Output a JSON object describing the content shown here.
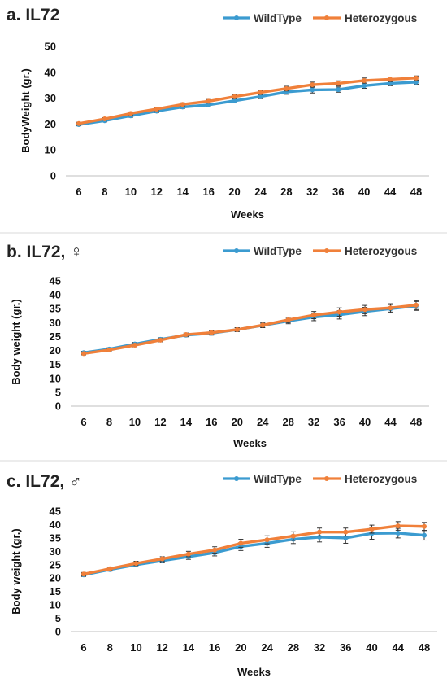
{
  "colors": {
    "wildtype": "#3b9bd0",
    "heterozygous": "#f0803a",
    "errorbar": "#333333",
    "axis": "#bfbfbf"
  },
  "chart_data": [
    {
      "type": "line",
      "title": "a. IL72",
      "xlabel": "Weeks",
      "ylabel": "BodyWeight (gr.)",
      "categories": [
        "6",
        "8",
        "10",
        "12",
        "14",
        "16",
        "20",
        "24",
        "28",
        "32",
        "36",
        "40",
        "44",
        "48"
      ],
      "ylim": [
        0,
        50
      ],
      "yticks": [
        "0",
        "10",
        "20",
        "30",
        "40",
        "50"
      ],
      "legend": "top-right",
      "grid": false,
      "series": [
        {
          "name": "WildType",
          "values": [
            19.8,
            21.3,
            23.2,
            25.0,
            26.6,
            27.4,
            29.0,
            30.6,
            32.4,
            33.2,
            33.3,
            34.8,
            35.7,
            36.2
          ],
          "errors": [
            0.5,
            0.5,
            0.6,
            0.6,
            0.6,
            0.7,
            0.8,
            0.8,
            0.9,
            1.2,
            1.0,
            1.0,
            0.9,
            0.8
          ]
        },
        {
          "name": "Heterozygous",
          "values": [
            20.2,
            22.0,
            24.1,
            25.8,
            27.6,
            28.8,
            30.6,
            32.2,
            33.7,
            35.2,
            35.7,
            36.8,
            37.3,
            37.8
          ],
          "errors": [
            0.5,
            0.5,
            0.6,
            0.6,
            0.6,
            0.7,
            0.8,
            0.8,
            0.9,
            1.0,
            1.0,
            1.0,
            0.9,
            0.8
          ]
        }
      ]
    },
    {
      "type": "line",
      "title": "b. IL72, ♀",
      "xlabel": "Weeks",
      "ylabel": "Body weight (gr.)",
      "categories": [
        "6",
        "8",
        "10",
        "12",
        "14",
        "16",
        "20",
        "24",
        "28",
        "32",
        "36",
        "40",
        "44",
        "48"
      ],
      "ylim": [
        0,
        45
      ],
      "yticks": [
        "0",
        "5",
        "10",
        "15",
        "20",
        "25",
        "30",
        "35",
        "40",
        "45"
      ],
      "legend": "top-right",
      "grid": false,
      "series": [
        {
          "name": "WildType",
          "values": [
            19.2,
            20.5,
            22.3,
            24.0,
            25.5,
            26.2,
            27.5,
            29.0,
            30.6,
            32.0,
            32.8,
            34.0,
            35.0,
            36.0
          ],
          "errors": [
            0.5,
            0.5,
            0.6,
            0.6,
            0.6,
            0.7,
            0.7,
            0.8,
            1.0,
            1.3,
            1.5,
            1.5,
            1.5,
            1.6
          ]
        },
        {
          "name": "Heterozygous",
          "values": [
            18.9,
            20.2,
            21.9,
            23.7,
            25.7,
            26.4,
            27.5,
            29.1,
            31.0,
            32.7,
            33.8,
            34.7,
            35.3,
            36.3
          ],
          "errors": [
            0.5,
            0.5,
            0.6,
            0.6,
            0.6,
            0.7,
            0.7,
            0.8,
            1.0,
            1.3,
            1.5,
            1.5,
            1.5,
            1.6
          ]
        }
      ]
    },
    {
      "type": "line",
      "title": "c. IL72, ♂",
      "xlabel": "Weeks",
      "ylabel": "Body weight (gr.)",
      "categories": [
        "6",
        "8",
        "10",
        "12",
        "14",
        "16",
        "20",
        "24",
        "28",
        "32",
        "36",
        "40",
        "44",
        "48"
      ],
      "ylim": [
        0,
        45
      ],
      "yticks": [
        "0",
        "5",
        "10",
        "15",
        "20",
        "25",
        "30",
        "35",
        "40",
        "45"
      ],
      "legend": "top-right",
      "grid": false,
      "series": [
        {
          "name": "WildType",
          "values": [
            21.2,
            23.2,
            25.0,
            26.5,
            28.0,
            29.5,
            31.8,
            33.0,
            34.5,
            35.3,
            35.0,
            36.7,
            36.8,
            36.0
          ],
          "errors": [
            0.6,
            0.6,
            0.8,
            0.8,
            1.0,
            1.2,
            1.5,
            1.5,
            1.6,
            1.8,
            2.0,
            2.2,
            1.8,
            1.8
          ]
        },
        {
          "name": "Heterozygous",
          "values": [
            21.5,
            23.5,
            25.5,
            27.2,
            29.0,
            30.5,
            33.0,
            34.3,
            35.7,
            37.2,
            37.2,
            38.3,
            39.5,
            39.3
          ],
          "errors": [
            0.6,
            0.6,
            0.8,
            0.8,
            1.0,
            1.2,
            1.5,
            1.5,
            1.6,
            1.5,
            1.5,
            1.5,
            1.6,
            1.5
          ]
        }
      ]
    }
  ]
}
